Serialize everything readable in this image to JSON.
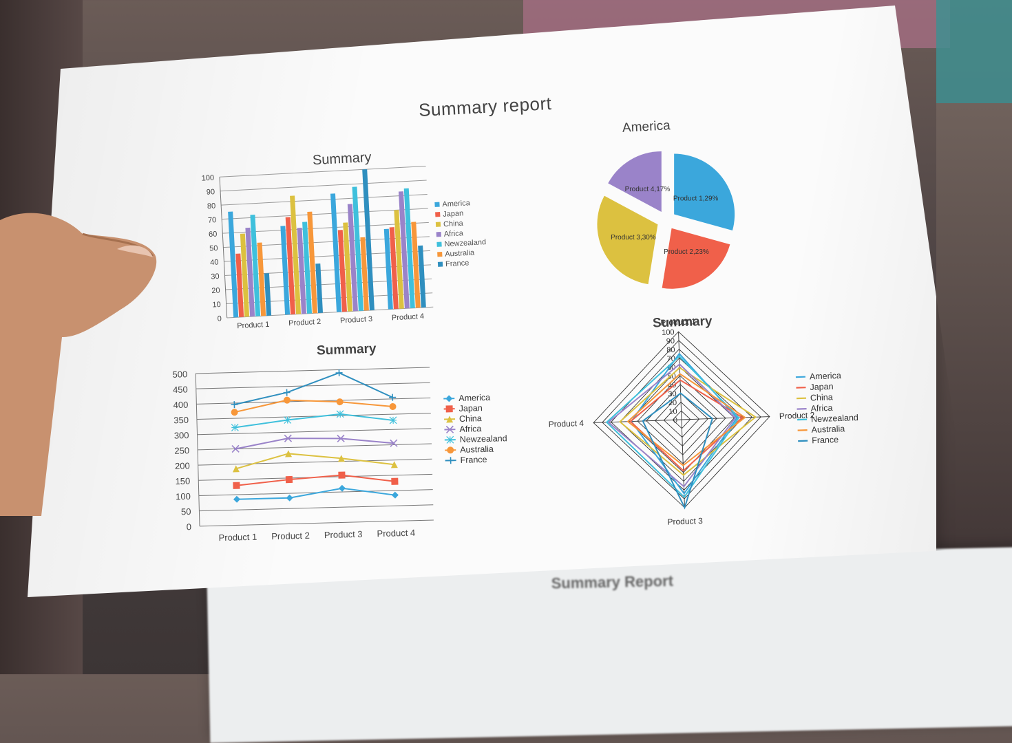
{
  "page_title": "Summary report",
  "colors": {
    "America": "#3ba7dc",
    "Japan": "#f0604a",
    "China": "#dcc140",
    "Africa": "#9a83c9",
    "Newzealand": "#3fc0dc",
    "Australia": "#f7973a",
    "France": "#2f8fbf",
    "Product 1": "#3ba7dc",
    "Product 2": "#f0604a",
    "Product 3": "#dcc140",
    "Product 4": "#9a83c9"
  },
  "chart_data": [
    {
      "id": "bar",
      "type": "bar",
      "title": "Summary",
      "categories": [
        "Product 1",
        "Product 2",
        "Product 3",
        "Product 4"
      ],
      "ylim": [
        0,
        100
      ],
      "yticks": [
        "0",
        "10",
        "20",
        "30",
        "40",
        "50",
        "60",
        "70",
        "80",
        "90",
        "100"
      ],
      "legend_position": "right",
      "grid": true,
      "series": [
        {
          "name": "America",
          "values": [
            75,
            63,
            84,
            57
          ]
        },
        {
          "name": "Japan",
          "values": [
            45,
            69,
            58,
            58
          ]
        },
        {
          "name": "China",
          "values": [
            59,
            84,
            63,
            70
          ]
        },
        {
          "name": "Africa",
          "values": [
            63,
            61,
            76,
            83
          ]
        },
        {
          "name": "Newzealand",
          "values": [
            72,
            65,
            88,
            85
          ]
        },
        {
          "name": "Australia",
          "values": [
            52,
            72,
            52,
            61
          ]
        },
        {
          "name": "France",
          "values": [
            30,
            35,
            100,
            44
          ]
        }
      ]
    },
    {
      "id": "pie",
      "type": "pie",
      "title": "America",
      "slices": [
        {
          "label": "Product 1,29%",
          "name": "Product 1",
          "value": 29
        },
        {
          "label": "Product 2,23%",
          "name": "Product 2",
          "value": 23
        },
        {
          "label": "Product 3,30%",
          "name": "Product 3",
          "value": 30
        },
        {
          "label": "Product 4,17%",
          "name": "Product 4",
          "value": 17
        }
      ]
    },
    {
      "id": "line",
      "type": "line",
      "title": "Summary",
      "categories": [
        "Product 1",
        "Product 2",
        "Product 3",
        "Product 4"
      ],
      "ylim": [
        0,
        500
      ],
      "yticks": [
        "0",
        "50",
        "100",
        "150",
        "200",
        "250",
        "300",
        "350",
        "400",
        "450",
        "500"
      ],
      "legend_position": "right",
      "grid": true,
      "series": [
        {
          "name": "America",
          "marker": "diamond",
          "values": [
            85,
            85,
            112,
            85
          ]
        },
        {
          "name": "Japan",
          "marker": "square",
          "values": [
            130,
            145,
            155,
            130
          ]
        },
        {
          "name": "China",
          "marker": "triangle",
          "values": [
            185,
            230,
            210,
            185
          ]
        },
        {
          "name": "Africa",
          "marker": "x",
          "values": [
            250,
            280,
            275,
            255
          ]
        },
        {
          "name": "Newzealand",
          "marker": "star",
          "values": [
            320,
            340,
            355,
            330
          ]
        },
        {
          "name": "Australia",
          "marker": "circle",
          "values": [
            370,
            405,
            395,
            375
          ]
        },
        {
          "name": "France",
          "marker": "plus",
          "values": [
            395,
            430,
            490,
            405
          ]
        }
      ]
    },
    {
      "id": "radar",
      "type": "radar",
      "title": "Summary",
      "axes": [
        "Product 1",
        "Product 2",
        "Product 3",
        "Product 4"
      ],
      "rlim": [
        0,
        100
      ],
      "rticks": [
        "0",
        "10",
        "20",
        "30",
        "40",
        "50",
        "60",
        "70",
        "80",
        "90",
        "100"
      ],
      "legend_position": "right",
      "series": [
        {
          "name": "America",
          "values": [
            75,
            63,
            84,
            57
          ]
        },
        {
          "name": "Japan",
          "values": [
            45,
            69,
            58,
            58
          ]
        },
        {
          "name": "China",
          "values": [
            59,
            84,
            63,
            70
          ]
        },
        {
          "name": "Africa",
          "values": [
            63,
            61,
            76,
            83
          ]
        },
        {
          "name": "Newzealand",
          "values": [
            72,
            65,
            88,
            85
          ]
        },
        {
          "name": "Australia",
          "values": [
            52,
            72,
            52,
            61
          ]
        },
        {
          "name": "France",
          "values": [
            30,
            35,
            100,
            44
          ]
        }
      ]
    }
  ],
  "background_sheet": {
    "title": "Summary Report"
  }
}
